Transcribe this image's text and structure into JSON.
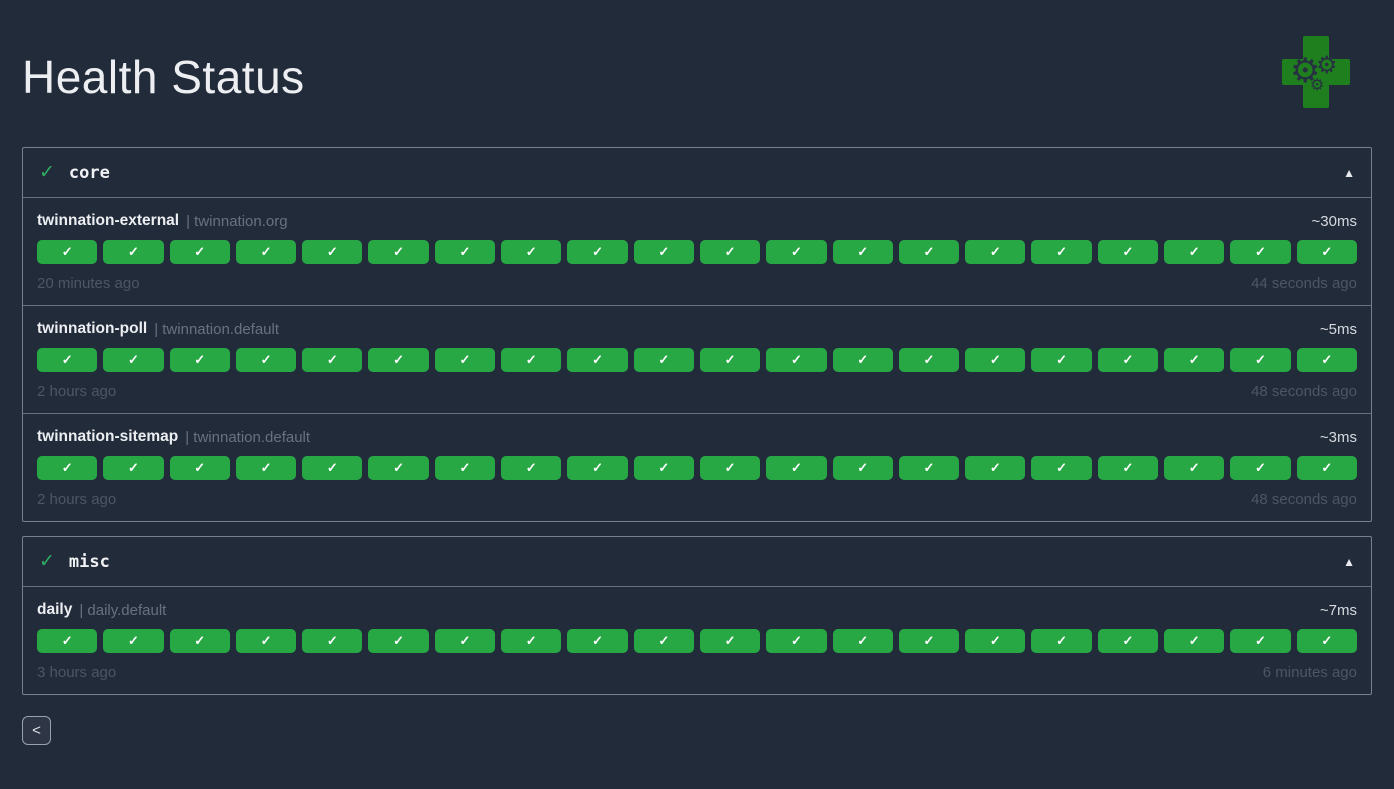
{
  "page": {
    "title": "Health Status"
  },
  "icons": {
    "group_status": "✓",
    "collapse": "▲",
    "result_check": "✓",
    "back": "<",
    "gear": "⚙"
  },
  "colors": {
    "background": "#222b3a",
    "success_pill": "#28a745",
    "success_check": "#2fae62",
    "logo_cross": "#1f7f1f",
    "panel_border": "#76808f"
  },
  "groups": [
    {
      "name": "core",
      "status": "success",
      "collapsed": false,
      "endpoints": [
        {
          "name": "twinnation-external",
          "group_label": "| twinnation.org",
          "response_time": "~30ms",
          "oldest": "20 minutes ago",
          "newest": "44 seconds ago",
          "results": [
            "up",
            "up",
            "up",
            "up",
            "up",
            "up",
            "up",
            "up",
            "up",
            "up",
            "up",
            "up",
            "up",
            "up",
            "up",
            "up",
            "up",
            "up",
            "up",
            "up"
          ]
        },
        {
          "name": "twinnation-poll",
          "group_label": "| twinnation.default",
          "response_time": "~5ms",
          "oldest": "2 hours ago",
          "newest": "48 seconds ago",
          "results": [
            "up",
            "up",
            "up",
            "up",
            "up",
            "up",
            "up",
            "up",
            "up",
            "up",
            "up",
            "up",
            "up",
            "up",
            "up",
            "up",
            "up",
            "up",
            "up",
            "up"
          ]
        },
        {
          "name": "twinnation-sitemap",
          "group_label": "| twinnation.default",
          "response_time": "~3ms",
          "oldest": "2 hours ago",
          "newest": "48 seconds ago",
          "results": [
            "up",
            "up",
            "up",
            "up",
            "up",
            "up",
            "up",
            "up",
            "up",
            "up",
            "up",
            "up",
            "up",
            "up",
            "up",
            "up",
            "up",
            "up",
            "up",
            "up"
          ]
        }
      ]
    },
    {
      "name": "misc",
      "status": "success",
      "collapsed": false,
      "endpoints": [
        {
          "name": "daily",
          "group_label": "| daily.default",
          "response_time": "~7ms",
          "oldest": "3 hours ago",
          "newest": "6 minutes ago",
          "results": [
            "up",
            "up",
            "up",
            "up",
            "up",
            "up",
            "up",
            "up",
            "up",
            "up",
            "up",
            "up",
            "up",
            "up",
            "up",
            "up",
            "up",
            "up",
            "up",
            "up"
          ]
        }
      ]
    }
  ],
  "footer": {
    "back_label": "<"
  }
}
